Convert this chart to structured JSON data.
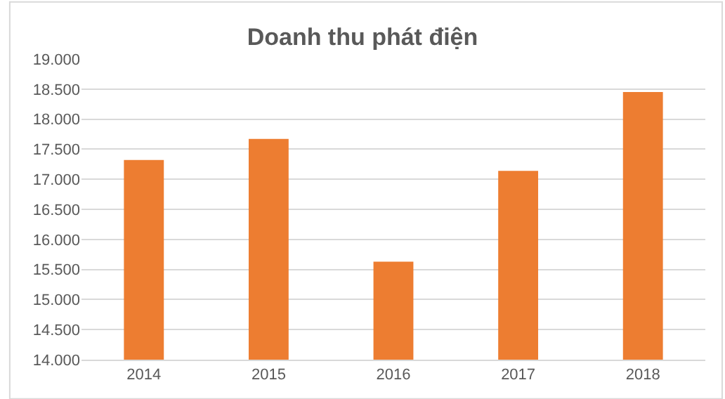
{
  "chart_data": {
    "type": "bar",
    "title": "Doanh thu phát điện",
    "categories": [
      "2014",
      "2015",
      "2016",
      "2017",
      "2018"
    ],
    "values": [
      17320,
      17670,
      15630,
      17140,
      18450
    ],
    "color": "#ed7d31",
    "ylim": [
      14000,
      19000
    ],
    "yticks": [
      {
        "value": 14000,
        "label": "14.000"
      },
      {
        "value": 14500,
        "label": "14.500"
      },
      {
        "value": 15000,
        "label": "15.000"
      },
      {
        "value": 15500,
        "label": "15.500"
      },
      {
        "value": 16000,
        "label": "16.000"
      },
      {
        "value": 16500,
        "label": "16.500"
      },
      {
        "value": 17000,
        "label": "17.000"
      },
      {
        "value": 17500,
        "label": "17.500"
      },
      {
        "value": 18000,
        "label": "18.000"
      },
      {
        "value": 18500,
        "label": "18.500"
      },
      {
        "value": 19000,
        "label": "19.000"
      }
    ],
    "grid": "y"
  }
}
